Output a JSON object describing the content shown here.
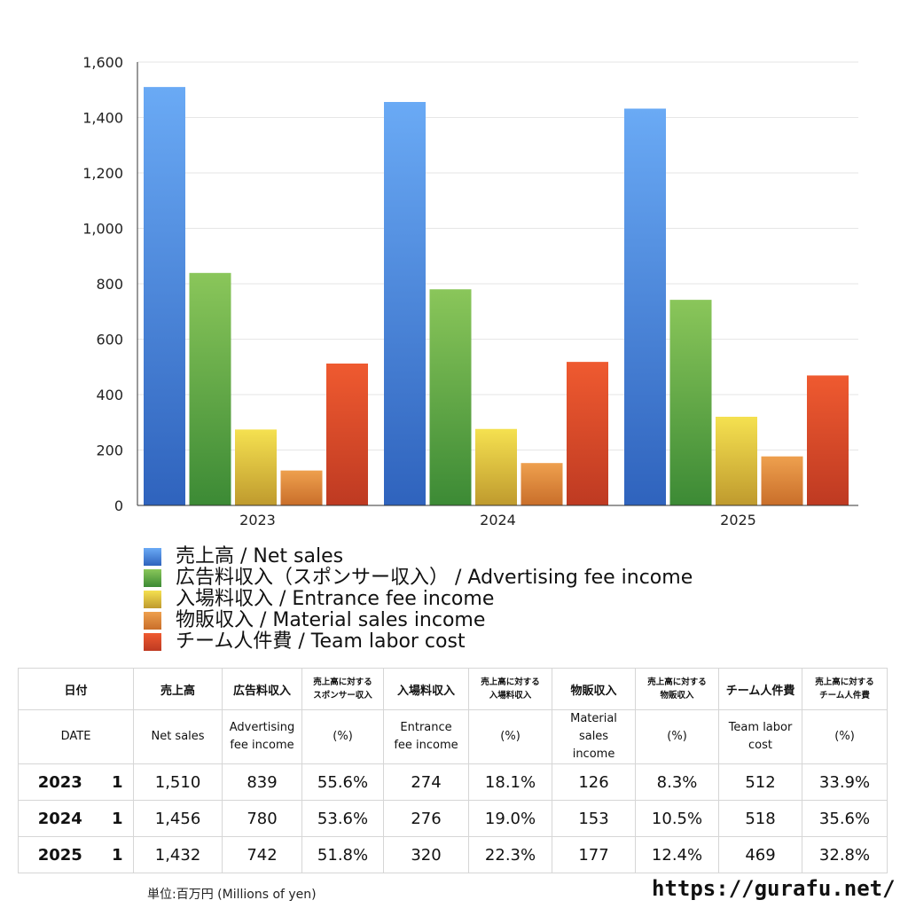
{
  "chart_data": {
    "type": "bar",
    "categories": [
      "2023",
      "2024",
      "2025"
    ],
    "ylim": [
      0,
      1600
    ],
    "yticks": [
      "0",
      "200",
      "400",
      "600",
      "800",
      "1,000",
      "1,200",
      "1,400",
      "1,600"
    ],
    "ytick_values": [
      0,
      200,
      400,
      600,
      800,
      1000,
      1200,
      1400,
      1600
    ],
    "grid": true,
    "legend_position": "bottom",
    "series": [
      {
        "name": "売上高 / Net sales",
        "values": [
          1510,
          1456,
          1432
        ],
        "color_top": "#6aaaf5",
        "color_bottom": "#2f63bd"
      },
      {
        "name": "広告料収入（スポンサー収入） / Advertising fee income",
        "values": [
          839,
          780,
          742
        ],
        "color_top": "#8ac65a",
        "color_bottom": "#3c8a35"
      },
      {
        "name": "入場料収入 / Entrance fee income",
        "values": [
          274,
          276,
          320
        ],
        "color_top": "#f5e150",
        "color_bottom": "#bf9a2e"
      },
      {
        "name": "物販収入 / Material sales income",
        "values": [
          126,
          153,
          177
        ],
        "color_top": "#eea04e",
        "color_bottom": "#c96e2a"
      },
      {
        "name": "チーム人件費 / Team labor cost",
        "values": [
          512,
          518,
          469
        ],
        "color_top": "#ef5a30",
        "color_bottom": "#be3a22"
      }
    ]
  },
  "table": {
    "header_ja": [
      "日付",
      "売上高",
      "広告料収入",
      "売上高に対する|スポンサー収入",
      "入場料収入",
      "売上高に対する|入場料収入",
      "物販収入",
      "売上高に対する|物販収入",
      "チーム人件費",
      "売上高に対する|チーム人件費"
    ],
    "header_en": [
      "DATE",
      "Net sales",
      "Advertising|fee income",
      "(%)",
      "Entrance|fee income",
      "(%)",
      "Material|sales|income",
      "(%)",
      "Team labor|cost",
      "(%)"
    ],
    "rows": [
      {
        "year": "2023",
        "unit": "1",
        "cells": [
          "1,510",
          "839",
          "55.6%",
          "274",
          "18.1%",
          "126",
          "8.3%",
          "512",
          "33.9%"
        ]
      },
      {
        "year": "2024",
        "unit": "1",
        "cells": [
          "1,456",
          "780",
          "53.6%",
          "276",
          "19.0%",
          "153",
          "10.5%",
          "518",
          "35.6%"
        ]
      },
      {
        "year": "2025",
        "unit": "1",
        "cells": [
          "1,432",
          "742",
          "51.8%",
          "320",
          "22.3%",
          "177",
          "12.4%",
          "469",
          "32.8%"
        ]
      }
    ]
  },
  "footnote": "単位:百万円 (Millions of yen)",
  "site_url": "https://gurafu.net/"
}
